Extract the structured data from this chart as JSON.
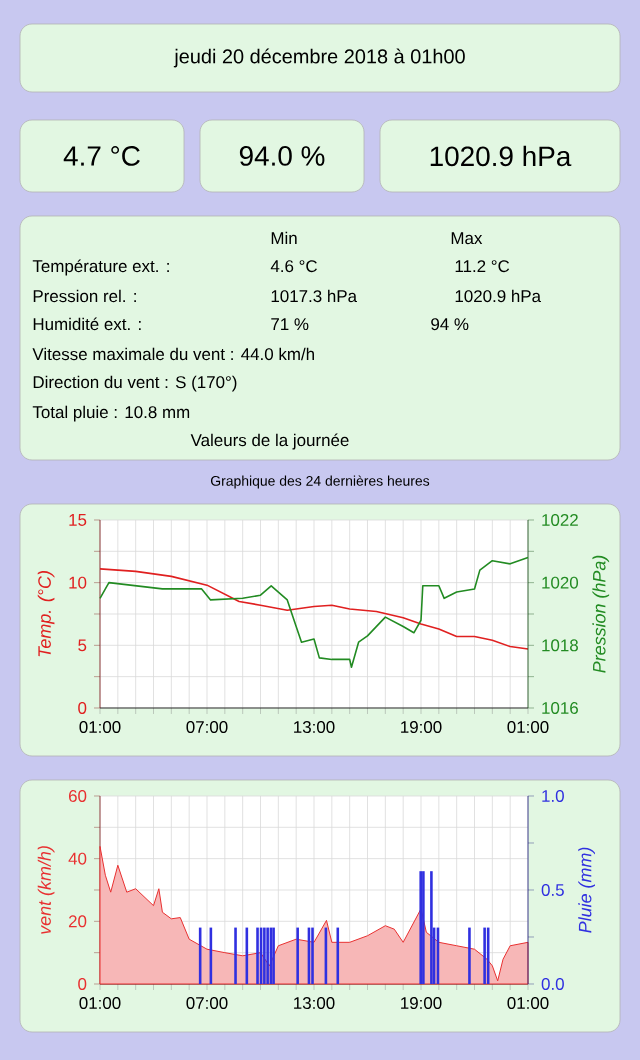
{
  "chart_data": [
    {
      "type": "other",
      "title": "jeudi 20 décembre 2018 à 01h00",
      "annotations": [
        "4.7 °C",
        "94.0 %",
        "1020.9 hPa",
        "Min",
        "Max",
        "Température ext. :",
        "4.6 °C",
        "11.2 °C",
        "Pression rel. :",
        "1017.3 hPa",
        "1020.9 hPa",
        "Humidité ext. :",
        "71 %",
        "94 %",
        "Vitesse maximale du vent : 44.0 km/h",
        "Direction du vent : S (170°)",
        "Total pluie : 10.8 mm",
        "Valeurs de la journée"
      ]
    },
    {
      "type": "line",
      "title": "Graphique des 24 dernières heures",
      "ylabel": "Temp. (°C)",
      "y2label": "Pression (hPa)",
      "xlim": [
        "2018-12-19T01:00",
        "2018-12-20T01:00"
      ],
      "xticks": [
        {
          "value": "2018-12-19T01:00",
          "label": "01:00"
        },
        {
          "value": "2018-12-19T02:00",
          "label": null
        },
        {
          "value": "2018-12-19T03:00",
          "label": null
        },
        {
          "value": "2018-12-19T04:00",
          "label": null
        },
        {
          "value": "2018-12-19T05:00",
          "label": null
        },
        {
          "value": "2018-12-19T06:00",
          "label": null
        },
        {
          "value": "2018-12-19T07:00",
          "label": "07:00"
        },
        {
          "value": "2018-12-19T08:00",
          "label": null
        },
        {
          "value": "2018-12-19T09:00",
          "label": null
        },
        {
          "value": "2018-12-19T10:00",
          "label": null
        },
        {
          "value": "2018-12-19T11:00",
          "label": null
        },
        {
          "value": "2018-12-19T12:00",
          "label": null
        },
        {
          "value": "2018-12-19T13:00",
          "label": "13:00"
        },
        {
          "value": "2018-12-19T14:00",
          "label": null
        },
        {
          "value": "2018-12-19T15:00",
          "label": null
        },
        {
          "value": "2018-12-19T16:00",
          "label": null
        },
        {
          "value": "2018-12-19T17:00",
          "label": null
        },
        {
          "value": "2018-12-19T18:00",
          "label": null
        },
        {
          "value": "2018-12-19T19:00",
          "label": "19:00"
        },
        {
          "value": "2018-12-19T20:00",
          "label": null
        },
        {
          "value": "2018-12-19T21:00",
          "label": null
        },
        {
          "value": "2018-12-19T22:00",
          "label": null
        },
        {
          "value": "2018-12-19T23:00",
          "label": null
        },
        {
          "value": "2018-12-20T00:00",
          "label": null
        },
        {
          "value": "2018-12-20T01:00",
          "label": "01:00"
        }
      ],
      "ylim": [
        0,
        15
      ],
      "yticks": [
        0,
        {
          "value": 2.5,
          "label": null
        },
        5,
        {
          "value": 7.5,
          "label": null
        },
        10,
        {
          "value": 12.5,
          "label": null
        },
        15
      ],
      "y2lim": [
        1016,
        1022
      ],
      "y2ticks": [
        1016,
        {
          "value": 1017,
          "label": null
        },
        1018,
        {
          "value": 1019,
          "label": null
        },
        1020,
        {
          "value": 1021,
          "label": null
        },
        1022
      ],
      "grid": true,
      "series": [
        {
          "color": "#e02020",
          "x": [
            "2018-12-19T01:00",
            "2018-12-19T03:00",
            "2018-12-19T05:00",
            "2018-12-19T07:00",
            "2018-12-19T08:48",
            "2018-12-19T10:00",
            "2018-12-19T11:30",
            "2018-12-19T13:00",
            "2018-12-19T14:00",
            "2018-12-19T15:00",
            "2018-12-19T16:30",
            "2018-12-19T18:00",
            "2018-12-19T19:00",
            "2018-12-19T20:00",
            "2018-12-19T21:00",
            "2018-12-19T22:00",
            "2018-12-19T23:00",
            "2018-12-20T00:00",
            "2018-12-20T01:00"
          ],
          "values": [
            11.1,
            10.9,
            10.5,
            9.8,
            8.5,
            8.2,
            7.8,
            8.1,
            8.2,
            7.9,
            7.7,
            7.2,
            6.7,
            6.3,
            5.7,
            5.7,
            5.4,
            4.9,
            4.7
          ]
        },
        {
          "color": "#228b22",
          "axis": "y2",
          "x": [
            "2018-12-19T01:00",
            "2018-12-19T01:30",
            "2018-12-19T03:00",
            "2018-12-19T04:30",
            "2018-12-19T06:00",
            "2018-12-19T06:42",
            "2018-12-19T07:12",
            "2018-12-19T09:00",
            "2018-12-19T10:00",
            "2018-12-19T10:36",
            "2018-12-19T11:30",
            "2018-12-19T12:00",
            "2018-12-19T12:18",
            "2018-12-19T13:00",
            "2018-12-19T13:18",
            "2018-12-19T14:00",
            "2018-12-19T15:00",
            "2018-12-19T15:06",
            "2018-12-19T15:30",
            "2018-12-19T16:00",
            "2018-12-19T17:00",
            "2018-12-19T18:00",
            "2018-12-19T18:36",
            "2018-12-19T19:00",
            "2018-12-19T19:06",
            "2018-12-19T20:00",
            "2018-12-19T20:18",
            "2018-12-19T21:00",
            "2018-12-19T22:00",
            "2018-12-19T22:18",
            "2018-12-19T23:00",
            "2018-12-20T00:00",
            "2018-12-20T01:00"
          ],
          "values": [
            1019.5,
            1020.0,
            1019.9,
            1019.8,
            1019.8,
            1019.8,
            1019.45,
            1019.5,
            1019.6,
            1019.9,
            1019.45,
            1018.6,
            1018.1,
            1018.2,
            1017.6,
            1017.55,
            1017.55,
            1017.3,
            1018.1,
            1018.3,
            1018.9,
            1018.6,
            1018.4,
            1018.8,
            1019.9,
            1019.9,
            1019.5,
            1019.7,
            1019.8,
            1020.4,
            1020.7,
            1020.6,
            1020.8
          ]
        }
      ]
    },
    {
      "type": "area",
      "ylabel": "vent (km/h)",
      "y2label": "Pluie (mm)",
      "xlim": [
        "2018-12-19T01:00",
        "2018-12-20T01:00"
      ],
      "xticks": [
        {
          "value": "2018-12-19T01:00",
          "label": "01:00"
        },
        {
          "value": "2018-12-19T02:00",
          "label": null
        },
        {
          "value": "2018-12-19T03:00",
          "label": null
        },
        {
          "value": "2018-12-19T04:00",
          "label": null
        },
        {
          "value": "2018-12-19T05:00",
          "label": null
        },
        {
          "value": "2018-12-19T06:00",
          "label": null
        },
        {
          "value": "2018-12-19T07:00",
          "label": "07:00"
        },
        {
          "value": "2018-12-19T08:00",
          "label": null
        },
        {
          "value": "2018-12-19T09:00",
          "label": null
        },
        {
          "value": "2018-12-19T10:00",
          "label": null
        },
        {
          "value": "2018-12-19T11:00",
          "label": null
        },
        {
          "value": "2018-12-19T12:00",
          "label": null
        },
        {
          "value": "2018-12-19T13:00",
          "label": "13:00"
        },
        {
          "value": "2018-12-19T14:00",
          "label": null
        },
        {
          "value": "2018-12-19T15:00",
          "label": null
        },
        {
          "value": "2018-12-19T16:00",
          "label": null
        },
        {
          "value": "2018-12-19T17:00",
          "label": null
        },
        {
          "value": "2018-12-19T18:00",
          "label": null
        },
        {
          "value": "2018-12-19T19:00",
          "label": "19:00"
        },
        {
          "value": "2018-12-19T20:00",
          "label": null
        },
        {
          "value": "2018-12-19T21:00",
          "label": null
        },
        {
          "value": "2018-12-19T22:00",
          "label": null
        },
        {
          "value": "2018-12-19T23:00",
          "label": null
        },
        {
          "value": "2018-12-20T00:00",
          "label": null
        },
        {
          "value": "2018-12-20T01:00",
          "label": "01:00"
        }
      ],
      "ylim": [
        0,
        60
      ],
      "yticks": [
        0,
        {
          "value": 10,
          "label": null
        },
        20,
        {
          "value": 30,
          "label": null
        },
        40,
        {
          "value": 50,
          "label": null
        },
        60
      ],
      "y2lim": [
        0,
        1
      ],
      "y2ticks": [
        {
          "value": 0,
          "label": "0.0"
        },
        {
          "value": 0.25,
          "label": null
        },
        {
          "value": 0.5,
          "label": "0.5"
        },
        {
          "value": 0.75,
          "label": null
        },
        {
          "value": 1,
          "label": "1.0"
        }
      ],
      "grid": true,
      "series": [
        {
          "color": "#e83030",
          "x": [
            "2018-12-19T01:00",
            "2018-12-19T01:18",
            "2018-12-19T01:36",
            "2018-12-19T02:00",
            "2018-12-19T02:30",
            "2018-12-19T03:00",
            "2018-12-19T04:00",
            "2018-12-19T04:18",
            "2018-12-19T04:30",
            "2018-12-19T05:00",
            "2018-12-19T05:30",
            "2018-12-19T06:00",
            "2018-12-19T07:00",
            "2018-12-19T08:00",
            "2018-12-19T09:00",
            "2018-12-19T10:00",
            "2018-12-19T10:30",
            "2018-12-19T11:00",
            "2018-12-19T12:00",
            "2018-12-19T13:00",
            "2018-12-19T13:42",
            "2018-12-19T14:00",
            "2018-12-19T15:00",
            "2018-12-19T16:00",
            "2018-12-19T17:00",
            "2018-12-19T17:30",
            "2018-12-19T18:00",
            "2018-12-19T19:00",
            "2018-12-19T19:18",
            "2018-12-19T20:00",
            "2018-12-19T21:00",
            "2018-12-19T22:00",
            "2018-12-19T22:42",
            "2018-12-19T23:00",
            "2018-12-19T23:18",
            "2018-12-19T23:36",
            "2018-12-20T00:00",
            "2018-12-20T01:00"
          ],
          "values": [
            43.9,
            34.7,
            29.3,
            37.9,
            29.3,
            30.4,
            25,
            30.4,
            22.9,
            20.8,
            21.2,
            14.3,
            11.1,
            10,
            9,
            10,
            5.8,
            12.2,
            14.3,
            13.3,
            20.3,
            13.3,
            13.3,
            15.4,
            18.6,
            17.5,
            13.3,
            24,
            16.5,
            13.3,
            12.2,
            11.1,
            7.9,
            5.8,
            1,
            7.9,
            12.2,
            13.3
          ]
        },
        {
          "type": "bar",
          "axis": "y2",
          "color": "#3030e0",
          "x": [
            "2018-12-19T06:37",
            "2018-12-19T07:13",
            "2018-12-19T08:36",
            "2018-12-19T09:14",
            "2018-12-19T09:50",
            "2018-12-19T10:02",
            "2018-12-19T10:13",
            "2018-12-19T10:24",
            "2018-12-19T10:35",
            "2018-12-19T10:44",
            "2018-12-19T12:05",
            "2018-12-19T12:43",
            "2018-12-19T12:55",
            "2018-12-19T13:40",
            "2018-12-19T14:20",
            "2018-12-19T18:59",
            "2018-12-19T19:08",
            "2018-12-19T19:35",
            "2018-12-19T19:44",
            "2018-12-19T19:57",
            "2018-12-19T21:43",
            "2018-12-19T22:34",
            "2018-12-19T22:46"
          ],
          "values": [
            0.3,
            0.3,
            0.3,
            0.3,
            0.3,
            0.3,
            0.3,
            0.3,
            0.3,
            0.3,
            0.3,
            0.3,
            0.3,
            0.3,
            0.3,
            0.6,
            0.6,
            0.6,
            0.3,
            0.3,
            0.3,
            0.3,
            0.3
          ]
        }
      ]
    }
  ]
}
